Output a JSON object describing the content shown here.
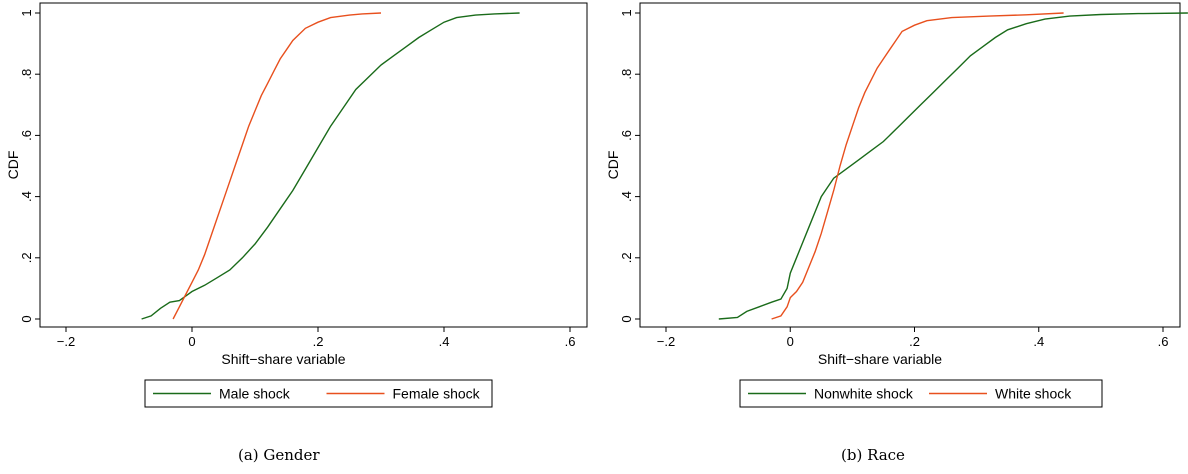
{
  "chart_data": [
    {
      "type": "line",
      "caption": "(a) Gender",
      "xlabel": "Shift−share variable",
      "ylabel": "CDF",
      "xlim": [
        -0.2,
        0.6
      ],
      "ylim": [
        0,
        1
      ],
      "xticks": [
        {
          "value": -0.2,
          "label": "−.2"
        },
        {
          "value": 0,
          "label": "0"
        },
        {
          "value": 0.2,
          "label": ".2"
        },
        {
          "value": 0.4,
          "label": ".4"
        },
        {
          "value": 0.6,
          "label": ".6"
        }
      ],
      "yticks": [
        {
          "value": 0,
          "label": "0"
        },
        {
          "value": 0.2,
          "label": ".2"
        },
        {
          "value": 0.4,
          "label": ".4"
        },
        {
          "value": 0.6,
          "label": ".6"
        },
        {
          "value": 0.8,
          "label": ".8"
        },
        {
          "value": 1,
          "label": "1"
        }
      ],
      "grid": false,
      "legend_placement": "bottom",
      "series": [
        {
          "name": "Male shock",
          "color": "#1a6b1a",
          "points": [
            [
              -0.08,
              0.0
            ],
            [
              -0.065,
              0.01
            ],
            [
              -0.05,
              0.035
            ],
            [
              -0.035,
              0.055
            ],
            [
              -0.02,
              0.06
            ],
            [
              -0.01,
              0.075
            ],
            [
              0.0,
              0.09
            ],
            [
              0.02,
              0.11
            ],
            [
              0.04,
              0.135
            ],
            [
              0.06,
              0.16
            ],
            [
              0.08,
              0.2
            ],
            [
              0.1,
              0.245
            ],
            [
              0.12,
              0.3
            ],
            [
              0.14,
              0.36
            ],
            [
              0.16,
              0.42
            ],
            [
              0.18,
              0.49
            ],
            [
              0.2,
              0.56
            ],
            [
              0.22,
              0.63
            ],
            [
              0.24,
              0.69
            ],
            [
              0.26,
              0.75
            ],
            [
              0.28,
              0.79
            ],
            [
              0.3,
              0.83
            ],
            [
              0.32,
              0.86
            ],
            [
              0.34,
              0.89
            ],
            [
              0.36,
              0.92
            ],
            [
              0.38,
              0.945
            ],
            [
              0.4,
              0.97
            ],
            [
              0.42,
              0.985
            ],
            [
              0.45,
              0.993
            ],
            [
              0.48,
              0.997
            ],
            [
              0.52,
              1.0
            ]
          ]
        },
        {
          "name": "Female shock",
          "color": "#e8501e",
          "points": [
            [
              -0.03,
              0.0
            ],
            [
              -0.02,
              0.04
            ],
            [
              -0.01,
              0.08
            ],
            [
              0.0,
              0.12
            ],
            [
              0.01,
              0.16
            ],
            [
              0.02,
              0.21
            ],
            [
              0.03,
              0.27
            ],
            [
              0.04,
              0.33
            ],
            [
              0.05,
              0.39
            ],
            [
              0.06,
              0.45
            ],
            [
              0.07,
              0.51
            ],
            [
              0.08,
              0.57
            ],
            [
              0.09,
              0.63
            ],
            [
              0.1,
              0.68
            ],
            [
              0.11,
              0.73
            ],
            [
              0.12,
              0.77
            ],
            [
              0.13,
              0.81
            ],
            [
              0.14,
              0.85
            ],
            [
              0.15,
              0.88
            ],
            [
              0.16,
              0.91
            ],
            [
              0.17,
              0.93
            ],
            [
              0.18,
              0.95
            ],
            [
              0.2,
              0.97
            ],
            [
              0.22,
              0.985
            ],
            [
              0.25,
              0.993
            ],
            [
              0.27,
              0.997
            ],
            [
              0.3,
              1.0
            ]
          ]
        }
      ]
    },
    {
      "type": "line",
      "caption": "(b) Race",
      "xlabel": "Shift−share variable",
      "ylabel": "CDF",
      "xlim": [
        -0.2,
        0.6
      ],
      "ylim": [
        0,
        1
      ],
      "xticks": [
        {
          "value": -0.2,
          "label": "−.2"
        },
        {
          "value": 0,
          "label": "0"
        },
        {
          "value": 0.2,
          "label": ".2"
        },
        {
          "value": 0.4,
          "label": ".4"
        },
        {
          "value": 0.6,
          "label": ".6"
        }
      ],
      "yticks": [
        {
          "value": 0,
          "label": "0"
        },
        {
          "value": 0.2,
          "label": ".2"
        },
        {
          "value": 0.4,
          "label": ".4"
        },
        {
          "value": 0.6,
          "label": ".6"
        },
        {
          "value": 0.8,
          "label": ".8"
        },
        {
          "value": 1,
          "label": "1"
        }
      ],
      "grid": false,
      "legend_placement": "bottom",
      "series": [
        {
          "name": "Nonwhite shock",
          "color": "#1a6b1a",
          "points": [
            [
              -0.115,
              0.0
            ],
            [
              -0.085,
              0.005
            ],
            [
              -0.07,
              0.025
            ],
            [
              -0.05,
              0.04
            ],
            [
              -0.03,
              0.055
            ],
            [
              -0.015,
              0.065
            ],
            [
              -0.005,
              0.1
            ],
            [
              0.0,
              0.15
            ],
            [
              0.01,
              0.2
            ],
            [
              0.02,
              0.25
            ],
            [
              0.03,
              0.3
            ],
            [
              0.04,
              0.35
            ],
            [
              0.05,
              0.4
            ],
            [
              0.06,
              0.43
            ],
            [
              0.07,
              0.46
            ],
            [
              0.09,
              0.49
            ],
            [
              0.11,
              0.52
            ],
            [
              0.13,
              0.55
            ],
            [
              0.15,
              0.58
            ],
            [
              0.17,
              0.62
            ],
            [
              0.19,
              0.66
            ],
            [
              0.21,
              0.7
            ],
            [
              0.23,
              0.74
            ],
            [
              0.25,
              0.78
            ],
            [
              0.27,
              0.82
            ],
            [
              0.29,
              0.86
            ],
            [
              0.31,
              0.89
            ],
            [
              0.33,
              0.92
            ],
            [
              0.35,
              0.945
            ],
            [
              0.38,
              0.965
            ],
            [
              0.41,
              0.98
            ],
            [
              0.45,
              0.99
            ],
            [
              0.5,
              0.995
            ],
            [
              0.56,
              0.998
            ],
            [
              0.64,
              1.0
            ]
          ]
        },
        {
          "name": "White shock",
          "color": "#e8501e",
          "points": [
            [
              -0.03,
              0.0
            ],
            [
              -0.015,
              0.01
            ],
            [
              -0.005,
              0.04
            ],
            [
              0.0,
              0.07
            ],
            [
              0.01,
              0.09
            ],
            [
              0.02,
              0.12
            ],
            [
              0.03,
              0.17
            ],
            [
              0.04,
              0.22
            ],
            [
              0.05,
              0.28
            ],
            [
              0.06,
              0.35
            ],
            [
              0.07,
              0.42
            ],
            [
              0.08,
              0.5
            ],
            [
              0.09,
              0.57
            ],
            [
              0.1,
              0.63
            ],
            [
              0.11,
              0.69
            ],
            [
              0.12,
              0.74
            ],
            [
              0.13,
              0.78
            ],
            [
              0.14,
              0.82
            ],
            [
              0.15,
              0.85
            ],
            [
              0.16,
              0.88
            ],
            [
              0.17,
              0.91
            ],
            [
              0.18,
              0.94
            ],
            [
              0.2,
              0.96
            ],
            [
              0.22,
              0.975
            ],
            [
              0.26,
              0.985
            ],
            [
              0.32,
              0.99
            ],
            [
              0.38,
              0.994
            ],
            [
              0.44,
              1.0
            ]
          ]
        }
      ]
    }
  ]
}
